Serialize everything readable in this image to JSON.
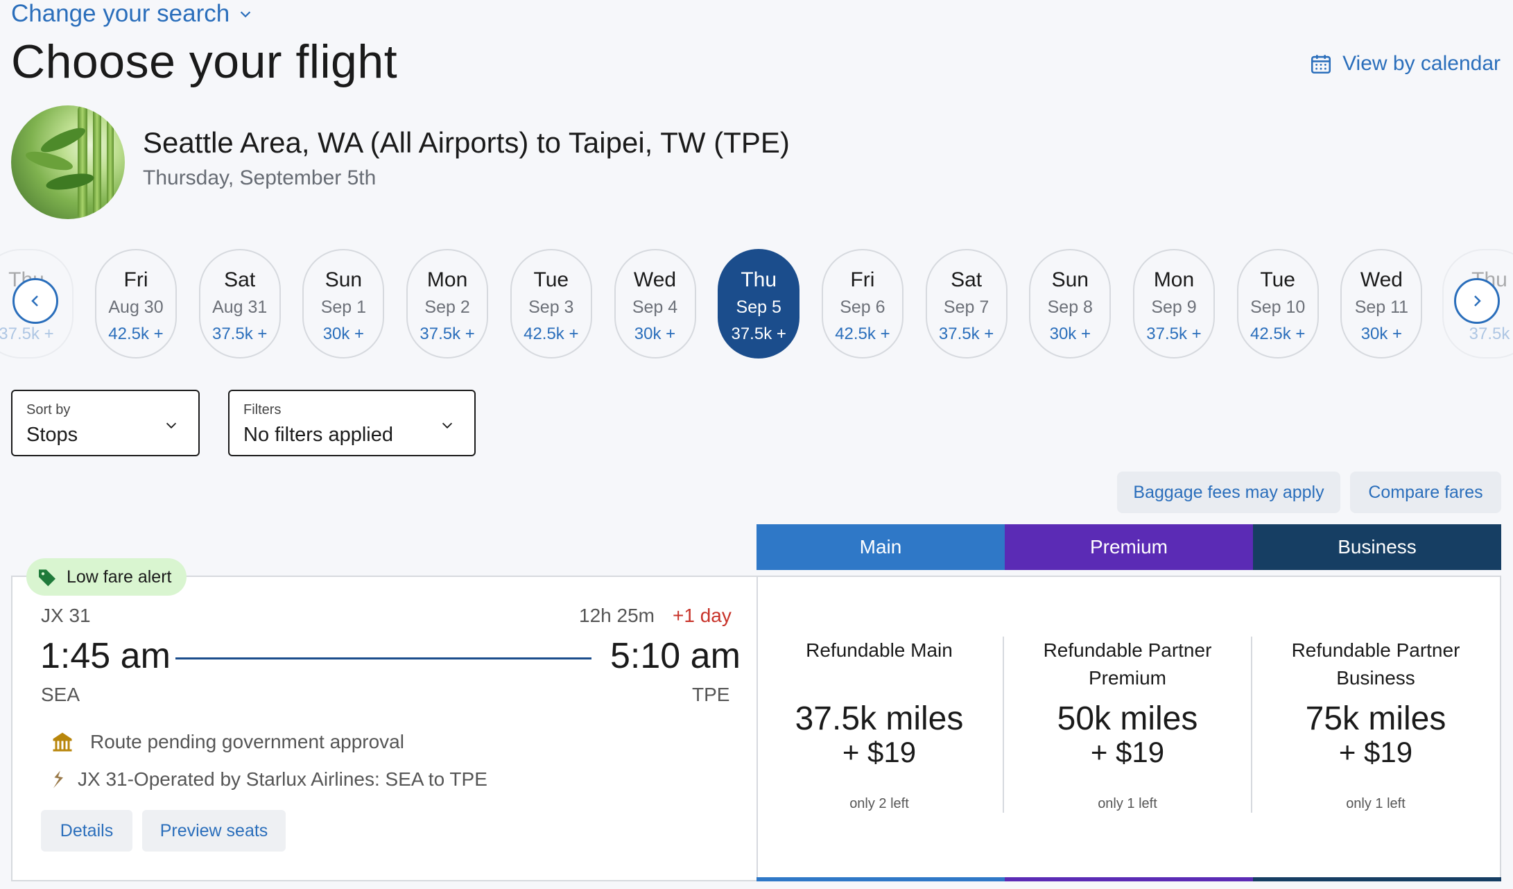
{
  "header": {
    "change_search": "Change your search",
    "title": "Choose your flight",
    "view_calendar": "View by calendar"
  },
  "route": {
    "title": "Seattle Area, WA (All Airports) to Taipei, TW (TPE)",
    "date": "Thursday, September 5th"
  },
  "date_strip": {
    "partial_left": {
      "dow": "Thu",
      "md": "",
      "price": "37.5k +"
    },
    "dates": [
      {
        "dow": "Fri",
        "md": "Aug 30",
        "price": "42.5k +"
      },
      {
        "dow": "Sat",
        "md": "Aug 31",
        "price": "37.5k +"
      },
      {
        "dow": "Sun",
        "md": "Sep 1",
        "price": "30k +"
      },
      {
        "dow": "Mon",
        "md": "Sep 2",
        "price": "37.5k +"
      },
      {
        "dow": "Tue",
        "md": "Sep 3",
        "price": "42.5k +"
      },
      {
        "dow": "Wed",
        "md": "Sep 4",
        "price": "30k +"
      },
      {
        "dow": "Thu",
        "md": "Sep 5",
        "price": "37.5k +",
        "selected": true
      },
      {
        "dow": "Fri",
        "md": "Sep 6",
        "price": "42.5k +"
      },
      {
        "dow": "Sat",
        "md": "Sep 7",
        "price": "37.5k +"
      },
      {
        "dow": "Sun",
        "md": "Sep 8",
        "price": "30k +"
      },
      {
        "dow": "Mon",
        "md": "Sep 9",
        "price": "37.5k +"
      },
      {
        "dow": "Tue",
        "md": "Sep 10",
        "price": "42.5k +"
      },
      {
        "dow": "Wed",
        "md": "Sep 11",
        "price": "30k +"
      }
    ],
    "partial_right": {
      "dow": "Thu",
      "md": "",
      "price": "37.5k"
    }
  },
  "sort": {
    "label": "Sort by",
    "value": "Stops"
  },
  "filters": {
    "label": "Filters",
    "value": "No filters applied"
  },
  "actions": {
    "baggage": "Baggage fees may apply",
    "compare": "Compare fares"
  },
  "fare_tabs": [
    {
      "label": "Main",
      "color": "#2f78c7"
    },
    {
      "label": "Premium",
      "color": "#5b2bb5"
    },
    {
      "label": "Business",
      "color": "#163e63"
    }
  ],
  "flight": {
    "alert": "Low fare alert",
    "number": "JX 31",
    "duration": "12h 25m",
    "plus_day": "+1 day",
    "depart_time": "1:45 am",
    "arrive_time": "5:10 am",
    "depart_code": "SEA",
    "arrive_code": "TPE",
    "notice": "Route pending government approval",
    "operated_by": "JX 31-Operated by Starlux Airlines: SEA to TPE",
    "details": "Details",
    "preview_seats": "Preview seats"
  },
  "fares": [
    {
      "name": "Refundable Main",
      "miles": "37.5k miles",
      "cash": "+ $19",
      "left": "only 2 left"
    },
    {
      "name": "Refundable Partner Premium",
      "miles": "50k miles",
      "cash": "+ $19",
      "left": "only 1 left"
    },
    {
      "name": "Refundable Partner Business",
      "miles": "75k miles",
      "cash": "+ $19",
      "left": "only 1 left"
    }
  ],
  "colors": {
    "brand_blue": "#2a6ebb",
    "selected_date": "#1b4d8c",
    "alert_green": "#d9f5d0",
    "plus_day_red": "#c8332a"
  }
}
